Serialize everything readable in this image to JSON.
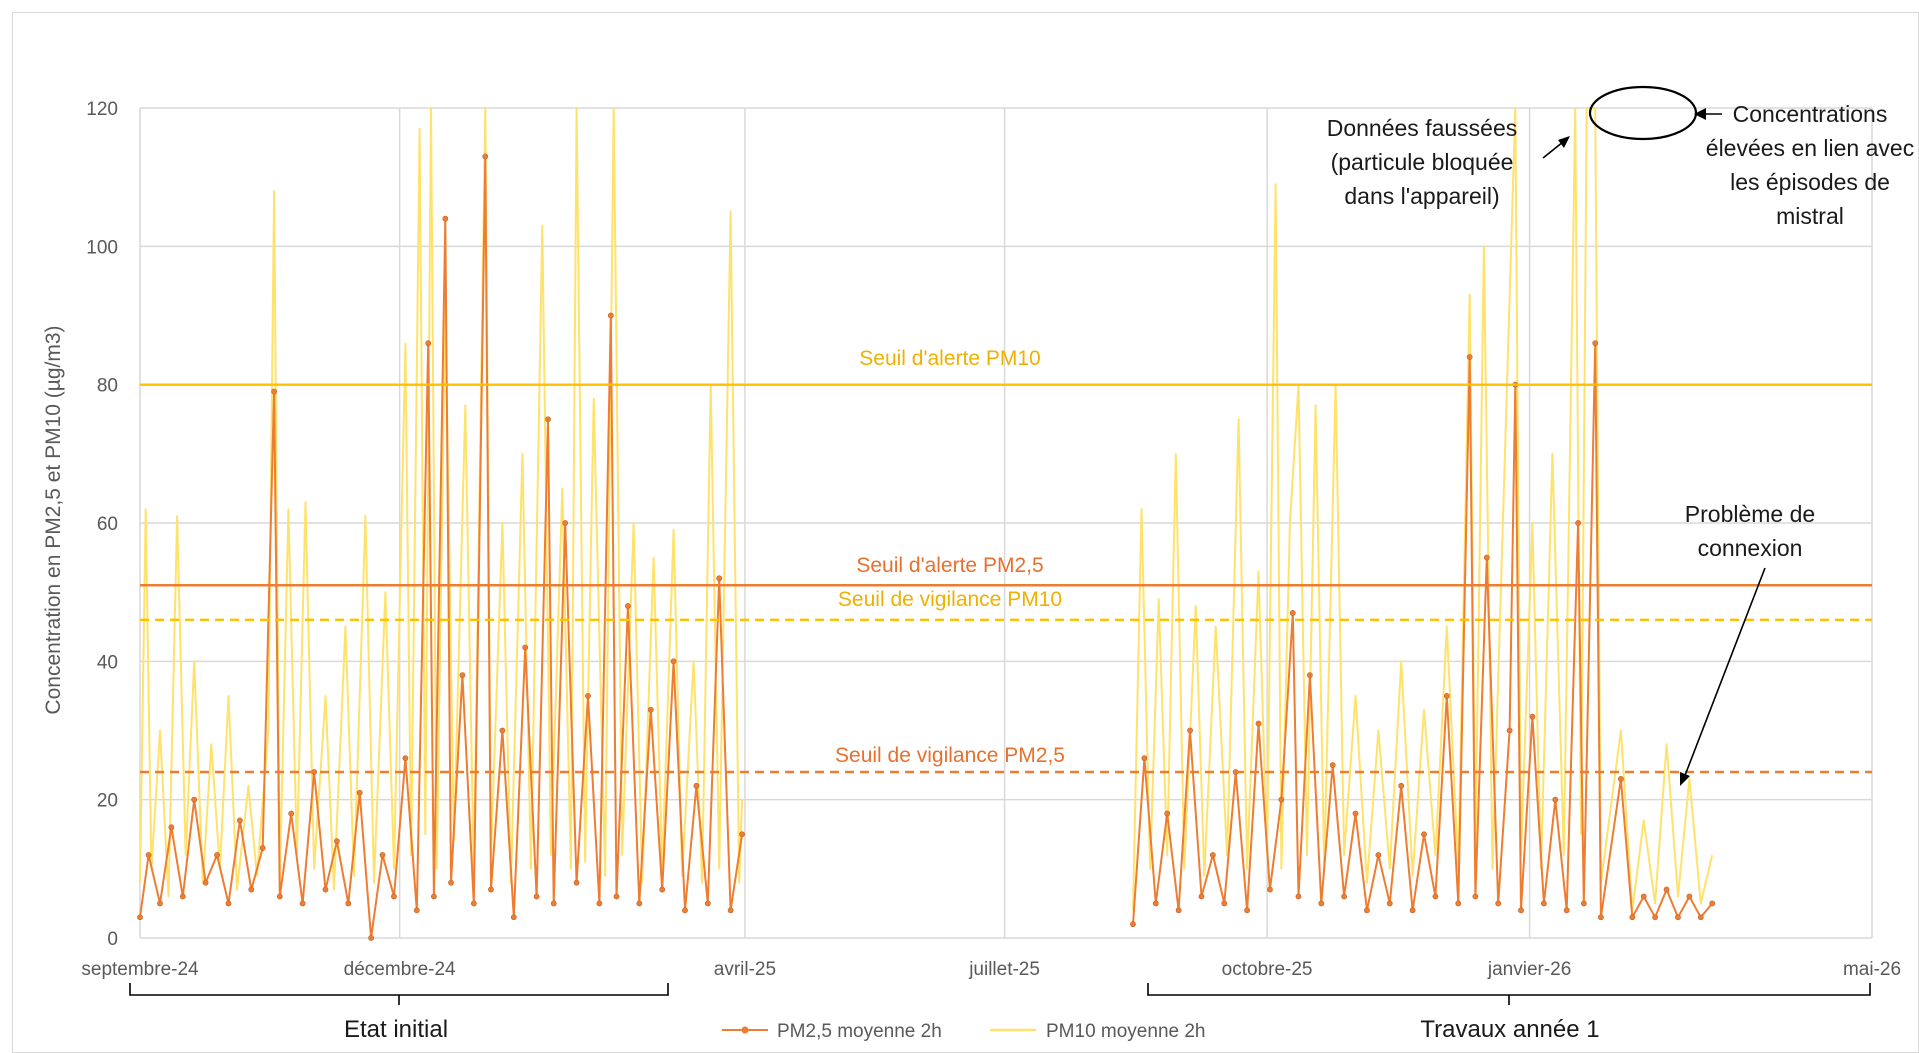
{
  "chart_data": {
    "type": "line",
    "title": "",
    "ylabel": "Concentration en PM2,5 et PM10 (µg/m3)",
    "xlabel": "",
    "ylim": [
      0,
      120
    ],
    "y_ticks": [
      0,
      20,
      40,
      60,
      80,
      100,
      120
    ],
    "y_tick_labels": [
      "0",
      "20",
      "40",
      "60",
      "80",
      "100",
      "120"
    ],
    "x_range": [
      "2024-09-01",
      "2026-05-01"
    ],
    "x_ticks": [
      {
        "date": "2024-09-01",
        "label": "septembre-24"
      },
      {
        "date": "2024-12-01",
        "label": "décembre-24"
      },
      {
        "date": "2025-04-01",
        "label": "avril-25"
      },
      {
        "date": "2025-07-01",
        "label": "juillet-25"
      },
      {
        "date": "2025-10-01",
        "label": "octobre-25"
      },
      {
        "date": "2026-01-01",
        "label": "janvier-26"
      },
      {
        "date": "2026-05-01",
        "label": "mai-26"
      }
    ],
    "grid": true,
    "legend_position": "bottom",
    "series": [
      {
        "name": "PM2,5 moyenne 2h",
        "color": "#ED7D31",
        "marker": "circle",
        "points": [
          [
            "2024-09-01",
            3
          ],
          [
            "2024-09-04",
            12
          ],
          [
            "2024-09-08",
            5
          ],
          [
            "2024-09-12",
            16
          ],
          [
            "2024-09-16",
            6
          ],
          [
            "2024-09-20",
            20
          ],
          [
            "2024-09-24",
            8
          ],
          [
            "2024-09-28",
            12
          ],
          [
            "2024-10-02",
            5
          ],
          [
            "2024-10-06",
            17
          ],
          [
            "2024-10-10",
            7
          ],
          [
            "2024-10-14",
            13
          ],
          [
            "2024-10-18",
            79
          ],
          [
            "2024-10-20",
            6
          ],
          [
            "2024-10-24",
            18
          ],
          [
            "2024-10-28",
            5
          ],
          [
            "2024-11-01",
            24
          ],
          [
            "2024-11-05",
            7
          ],
          [
            "2024-11-09",
            14
          ],
          [
            "2024-11-13",
            5
          ],
          [
            "2024-11-17",
            21
          ],
          [
            "2024-11-21",
            0
          ],
          [
            "2024-11-25",
            12
          ],
          [
            "2024-11-29",
            6
          ],
          [
            "2024-12-03",
            26
          ],
          [
            "2024-12-07",
            4
          ],
          [
            "2024-12-11",
            86
          ],
          [
            "2024-12-13",
            6
          ],
          [
            "2024-12-17",
            104
          ],
          [
            "2024-12-19",
            8
          ],
          [
            "2024-12-23",
            38
          ],
          [
            "2024-12-27",
            5
          ],
          [
            "2024-12-31",
            113
          ],
          [
            "2025-01-02",
            7
          ],
          [
            "2025-01-06",
            30
          ],
          [
            "2025-01-10",
            3
          ],
          [
            "2025-01-14",
            42
          ],
          [
            "2025-01-18",
            6
          ],
          [
            "2025-01-22",
            75
          ],
          [
            "2025-01-24",
            5
          ],
          [
            "2025-01-28",
            60
          ],
          [
            "2025-02-01",
            8
          ],
          [
            "2025-02-05",
            35
          ],
          [
            "2025-02-09",
            5
          ],
          [
            "2025-02-13",
            90
          ],
          [
            "2025-02-15",
            6
          ],
          [
            "2025-02-19",
            48
          ],
          [
            "2025-02-23",
            5
          ],
          [
            "2025-02-27",
            33
          ],
          [
            "2025-03-03",
            7
          ],
          [
            "2025-03-07",
            40
          ],
          [
            "2025-03-11",
            4
          ],
          [
            "2025-03-15",
            22
          ],
          [
            "2025-03-19",
            5
          ],
          [
            "2025-03-23",
            52
          ],
          [
            "2025-03-27",
            4
          ],
          [
            "2025-03-31",
            15
          ],
          [
            "2025-08-15",
            2
          ],
          [
            "2025-08-19",
            26
          ],
          [
            "2025-08-23",
            5
          ],
          [
            "2025-08-27",
            18
          ],
          [
            "2025-08-31",
            4
          ],
          [
            "2025-09-04",
            30
          ],
          [
            "2025-09-08",
            6
          ],
          [
            "2025-09-12",
            12
          ],
          [
            "2025-09-16",
            5
          ],
          [
            "2025-09-20",
            24
          ],
          [
            "2025-09-24",
            4
          ],
          [
            "2025-09-28",
            31
          ],
          [
            "2025-10-02",
            7
          ],
          [
            "2025-10-06",
            20
          ],
          [
            "2025-10-10",
            47
          ],
          [
            "2025-10-12",
            6
          ],
          [
            "2025-10-16",
            38
          ],
          [
            "2025-10-20",
            5
          ],
          [
            "2025-10-24",
            25
          ],
          [
            "2025-10-28",
            6
          ],
          [
            "2025-11-01",
            18
          ],
          [
            "2025-11-05",
            4
          ],
          [
            "2025-11-09",
            12
          ],
          [
            "2025-11-13",
            5
          ],
          [
            "2025-11-17",
            22
          ],
          [
            "2025-11-21",
            4
          ],
          [
            "2025-11-25",
            15
          ],
          [
            "2025-11-29",
            6
          ],
          [
            "2025-12-03",
            35
          ],
          [
            "2025-12-07",
            5
          ],
          [
            "2025-12-11",
            84
          ],
          [
            "2025-12-13",
            6
          ],
          [
            "2025-12-17",
            55
          ],
          [
            "2025-12-21",
            5
          ],
          [
            "2025-12-25",
            30
          ],
          [
            "2025-12-27",
            80
          ],
          [
            "2025-12-29",
            4
          ],
          [
            "2026-01-02",
            32
          ],
          [
            "2026-01-06",
            5
          ],
          [
            "2026-01-10",
            20
          ],
          [
            "2026-01-14",
            4
          ],
          [
            "2026-01-18",
            60
          ],
          [
            "2026-01-20",
            5
          ],
          [
            "2026-01-24",
            86
          ],
          [
            "2026-01-26",
            3
          ],
          [
            "2026-02-02",
            23
          ],
          [
            "2026-02-06",
            3
          ],
          [
            "2026-02-10",
            6
          ],
          [
            "2026-02-14",
            3
          ],
          [
            "2026-02-18",
            7
          ],
          [
            "2026-02-22",
            3
          ],
          [
            "2026-02-26",
            6
          ],
          [
            "2026-03-02",
            3
          ],
          [
            "2026-03-06",
            5
          ]
        ]
      },
      {
        "name": "PM10 moyenne 2h",
        "color": "#FFE26B",
        "marker": "none",
        "points": [
          [
            "2024-09-01",
            8
          ],
          [
            "2024-09-03",
            62
          ],
          [
            "2024-09-05",
            10
          ],
          [
            "2024-09-08",
            30
          ],
          [
            "2024-09-11",
            6
          ],
          [
            "2024-09-14",
            61
          ],
          [
            "2024-09-17",
            12
          ],
          [
            "2024-09-20",
            40
          ],
          [
            "2024-09-23",
            8
          ],
          [
            "2024-09-26",
            28
          ],
          [
            "2024-09-29",
            10
          ],
          [
            "2024-10-02",
            35
          ],
          [
            "2024-10-05",
            7
          ],
          [
            "2024-10-09",
            22
          ],
          [
            "2024-10-12",
            9
          ],
          [
            "2024-10-16",
            30
          ],
          [
            "2024-10-18",
            108
          ],
          [
            "2024-10-20",
            8
          ],
          [
            "2024-10-23",
            62
          ],
          [
            "2024-10-26",
            12
          ],
          [
            "2024-10-29",
            63
          ],
          [
            "2024-11-01",
            10
          ],
          [
            "2024-11-05",
            35
          ],
          [
            "2024-11-08",
            7
          ],
          [
            "2024-11-12",
            45
          ],
          [
            "2024-11-15",
            9
          ],
          [
            "2024-11-19",
            61
          ],
          [
            "2024-11-22",
            8
          ],
          [
            "2024-11-26",
            50
          ],
          [
            "2024-11-29",
            10
          ],
          [
            "2024-12-03",
            86
          ],
          [
            "2024-12-05",
            12
          ],
          [
            "2024-12-08",
            117
          ],
          [
            "2024-12-10",
            15
          ],
          [
            "2024-12-12",
            120
          ],
          [
            "2024-12-14",
            10
          ],
          [
            "2024-12-17",
            92
          ],
          [
            "2024-12-20",
            14
          ],
          [
            "2024-12-24",
            77
          ],
          [
            "2024-12-27",
            9
          ],
          [
            "2024-12-31",
            120
          ],
          [
            "2025-01-02",
            12
          ],
          [
            "2025-01-06",
            60
          ],
          [
            "2025-01-09",
            8
          ],
          [
            "2025-01-13",
            70
          ],
          [
            "2025-01-16",
            10
          ],
          [
            "2025-01-20",
            103
          ],
          [
            "2025-01-23",
            12
          ],
          [
            "2025-01-27",
            65
          ],
          [
            "2025-01-30",
            10
          ],
          [
            "2025-02-01",
            120
          ],
          [
            "2025-02-04",
            11
          ],
          [
            "2025-02-07",
            78
          ],
          [
            "2025-02-11",
            9
          ],
          [
            "2025-02-14",
            120
          ],
          [
            "2025-02-17",
            12
          ],
          [
            "2025-02-21",
            60
          ],
          [
            "2025-02-24",
            8
          ],
          [
            "2025-02-28",
            55
          ],
          [
            "2025-03-03",
            10
          ],
          [
            "2025-03-07",
            59
          ],
          [
            "2025-03-10",
            9
          ],
          [
            "2025-03-14",
            40
          ],
          [
            "2025-03-17",
            8
          ],
          [
            "2025-03-20",
            80
          ],
          [
            "2025-03-23",
            10
          ],
          [
            "2025-03-27",
            105
          ],
          [
            "2025-03-30",
            8
          ],
          [
            "2025-03-31",
            20
          ],
          [
            "2025-08-15",
            4
          ],
          [
            "2025-08-18",
            62
          ],
          [
            "2025-08-21",
            10
          ],
          [
            "2025-08-24",
            49
          ],
          [
            "2025-08-27",
            12
          ],
          [
            "2025-08-30",
            70
          ],
          [
            "2025-09-02",
            10
          ],
          [
            "2025-09-06",
            48
          ],
          [
            "2025-09-09",
            9
          ],
          [
            "2025-09-13",
            45
          ],
          [
            "2025-09-17",
            12
          ],
          [
            "2025-09-21",
            75
          ],
          [
            "2025-09-24",
            10
          ],
          [
            "2025-09-28",
            53
          ],
          [
            "2025-10-01",
            12
          ],
          [
            "2025-10-04",
            109
          ],
          [
            "2025-10-06",
            10
          ],
          [
            "2025-10-09",
            60
          ],
          [
            "2025-10-12",
            80
          ],
          [
            "2025-10-15",
            12
          ],
          [
            "2025-10-18",
            77
          ],
          [
            "2025-10-21",
            10
          ],
          [
            "2025-10-25",
            80
          ],
          [
            "2025-10-28",
            12
          ],
          [
            "2025-11-01",
            35
          ],
          [
            "2025-11-05",
            8
          ],
          [
            "2025-11-09",
            30
          ],
          [
            "2025-11-13",
            10
          ],
          [
            "2025-11-17",
            40
          ],
          [
            "2025-11-21",
            9
          ],
          [
            "2025-11-25",
            33
          ],
          [
            "2025-11-29",
            12
          ],
          [
            "2025-12-03",
            45
          ],
          [
            "2025-12-07",
            10
          ],
          [
            "2025-12-11",
            93
          ],
          [
            "2025-12-13",
            12
          ],
          [
            "2025-12-16",
            100
          ],
          [
            "2025-12-19",
            10
          ],
          [
            "2025-12-23",
            65
          ],
          [
            "2025-12-27",
            120
          ],
          [
            "2025-12-29",
            12
          ],
          [
            "2026-01-02",
            60
          ],
          [
            "2026-01-05",
            10
          ],
          [
            "2026-01-09",
            70
          ],
          [
            "2026-01-13",
            12
          ],
          [
            "2026-01-17",
            120
          ],
          [
            "2026-01-19",
            15
          ],
          [
            "2026-01-21",
            120
          ],
          [
            "2026-01-24",
            120
          ],
          [
            "2026-01-26",
            8
          ],
          [
            "2026-02-02",
            30
          ],
          [
            "2026-02-06",
            4
          ],
          [
            "2026-02-10",
            17
          ],
          [
            "2026-02-14",
            5
          ],
          [
            "2026-02-18",
            28
          ],
          [
            "2026-02-22",
            6
          ],
          [
            "2026-02-26",
            23
          ],
          [
            "2026-03-02",
            5
          ],
          [
            "2026-03-06",
            12
          ]
        ]
      }
    ],
    "thresholds": [
      {
        "label": "Seuil d'alerte PM10",
        "value": 80,
        "color": "#FFC000",
        "style": "solid"
      },
      {
        "label": "Seuil d'alerte PM2,5",
        "value": 51,
        "color": "#ED7D31",
        "style": "solid"
      },
      {
        "label": "Seuil de vigilance PM10",
        "value": 46,
        "color": "#FFC000",
        "style": "dashed"
      },
      {
        "label": "Seuil de vigilance PM2,5",
        "value": 24,
        "color": "#ED7D31",
        "style": "dashed"
      }
    ],
    "annotations": {
      "biased": [
        "Données faussées",
        "(particule bloquée",
        "dans l'appareil)"
      ],
      "mistral": [
        "Concentrations",
        "élevées en lien avec",
        "les épisodes de",
        "mistral"
      ],
      "connection": [
        "Problème de",
        "connexion"
      ]
    },
    "periods": [
      {
        "label": "Etat initial",
        "start": "2024-09-01",
        "end": "2025-03-21"
      },
      {
        "label": "Travaux année 1",
        "start": "2025-08-10",
        "end": "2026-05-01"
      }
    ]
  }
}
